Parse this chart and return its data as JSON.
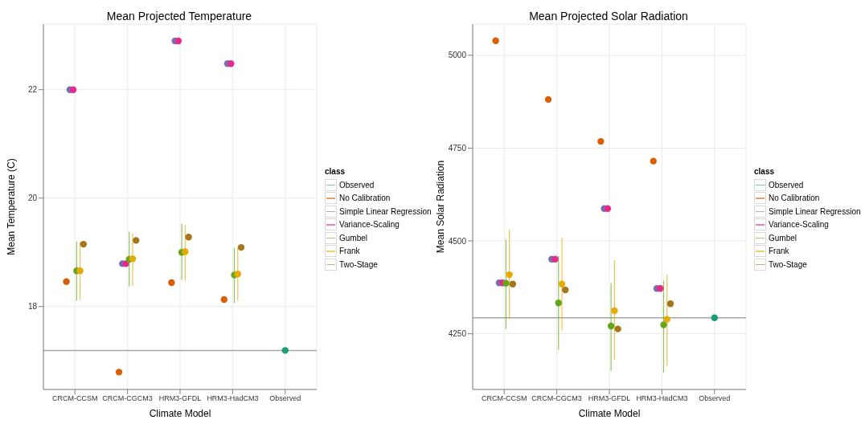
{
  "chart_data": [
    {
      "type": "scatter",
      "title": "Mean Projected Temperature",
      "xlabel": "Climate Model",
      "ylabel": "Mean Temperature (C)",
      "legend_title": "class",
      "legend": "right",
      "grid": true,
      "marker": "circle",
      "categories": [
        "CRCM-CCSM",
        "CRCM-CGCM3",
        "HRM3-GFDL",
        "HRM3-HadCM3",
        "Observed"
      ],
      "ylim": [
        16.47,
        23.21
      ],
      "yticks": [
        18,
        20,
        22
      ],
      "ref_lines": [
        {
          "axis": "y",
          "value": 17.19,
          "color": "#a6a6a6"
        }
      ],
      "series": [
        {
          "name": "Observed",
          "color": "#1b9e77",
          "values": [
            null,
            null,
            null,
            null,
            17.19
          ]
        },
        {
          "name": "No Calibration",
          "color": "#d95f02",
          "values": [
            18.46,
            16.79,
            18.44,
            18.13,
            null
          ]
        },
        {
          "name": "Simple Linear Regression",
          "color": "#7570b3",
          "values": [
            22.0,
            18.79,
            22.9,
            22.48,
            null
          ]
        },
        {
          "name": "Variance-Scaling",
          "color": "#e7298a",
          "values": [
            22.0,
            18.79,
            22.9,
            22.48,
            null
          ]
        },
        {
          "name": "Gumbel",
          "color": "#66a61e",
          "values": [
            18.66,
            18.87,
            19.0,
            18.58,
            null
          ],
          "errors": [
            [
              18.11,
              19.2
            ],
            [
              18.37,
              19.38
            ],
            [
              18.49,
              19.53
            ],
            [
              18.07,
              19.08
            ],
            null
          ]
        },
        {
          "name": "Frank",
          "color": "#e6ab02",
          "values": [
            18.66,
            18.88,
            19.01,
            18.6,
            null
          ],
          "errors": [
            [
              18.12,
              19.19
            ],
            [
              18.38,
              19.35
            ],
            [
              18.48,
              19.5
            ],
            [
              18.11,
              19.08
            ],
            null
          ]
        },
        {
          "name": "Two-Stage",
          "color": "#a6761d",
          "values": [
            19.15,
            19.22,
            19.28,
            19.09,
            null
          ]
        }
      ]
    },
    {
      "type": "scatter",
      "title": "Mean Projected Solar Radiation",
      "xlabel": "Climate Model",
      "ylabel": "Mean Solar Radiation",
      "legend_title": "class",
      "legend": "right",
      "grid": true,
      "marker": "circle",
      "categories": [
        "CRCM-CCSM",
        "CRCM-CGCM3",
        "HRM3-GFDL",
        "HRM3-HadCM3",
        "Observed"
      ],
      "ylim": [
        4100,
        5084
      ],
      "yticks": [
        4250,
        4500,
        4750,
        5000
      ],
      "ref_lines": [
        {
          "axis": "y",
          "value": 4293,
          "color": "#a6a6a6"
        }
      ],
      "series": [
        {
          "name": "Observed",
          "color": "#1b9e77",
          "values": [
            null,
            null,
            null,
            null,
            4293
          ]
        },
        {
          "name": "No Calibration",
          "color": "#d95f02",
          "values": [
            5039,
            4881,
            4768,
            4715,
            null
          ]
        },
        {
          "name": "Simple Linear Regression",
          "color": "#7570b3",
          "values": [
            4387,
            4451,
            4587,
            4372,
            null
          ]
        },
        {
          "name": "Variance-Scaling",
          "color": "#e7298a",
          "values": [
            4387,
            4451,
            4587,
            4372,
            null
          ]
        },
        {
          "name": "Gumbel",
          "color": "#66a61e",
          "values": [
            4386,
            4333,
            4271,
            4274,
            null
          ],
          "errors": [
            [
              4263,
              4504
            ],
            [
              4207,
              4460
            ],
            [
              4149,
              4386
            ],
            [
              4145,
              4393
            ],
            null
          ]
        },
        {
          "name": "Frank",
          "color": "#e6ab02",
          "values": [
            4409,
            4384,
            4312,
            4289,
            null
          ],
          "errors": [
            [
              4289,
              4530
            ],
            [
              4259,
              4509
            ],
            [
              4179,
              4448
            ],
            [
              4164,
              4409
            ],
            null
          ]
        },
        {
          "name": "Two-Stage",
          "color": "#a6761d",
          "values": [
            4384,
            4368,
            4263,
            4331,
            null
          ]
        }
      ]
    }
  ]
}
